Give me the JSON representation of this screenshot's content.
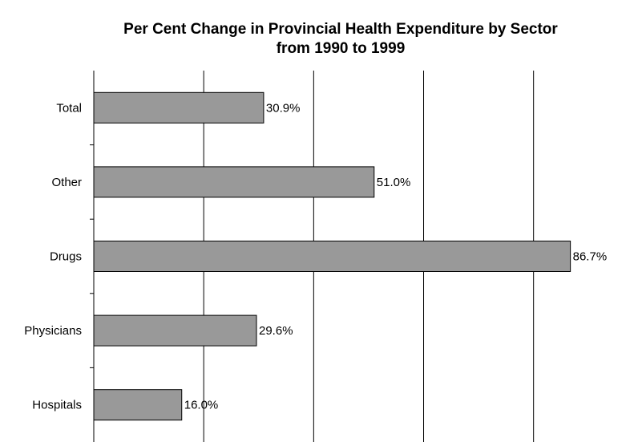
{
  "chart_data": {
    "type": "bar",
    "orientation": "horizontal",
    "title": [
      "Per Cent Change in Provincial Health Expenditure by Sector",
      "from 1990 to 1999"
    ],
    "categories": [
      "Total",
      "Other",
      "Drugs",
      "Physicians",
      "Hospitals"
    ],
    "values": [
      30.9,
      51.0,
      86.7,
      29.6,
      16.0
    ],
    "value_labels": [
      "30.9%",
      "51.0%",
      "86.7%",
      "29.6%",
      "16.0%"
    ],
    "color": "#999999",
    "xlim": [
      0,
      99
    ],
    "xticks": [
      0,
      20,
      40,
      60,
      80
    ],
    "grid": true
  }
}
